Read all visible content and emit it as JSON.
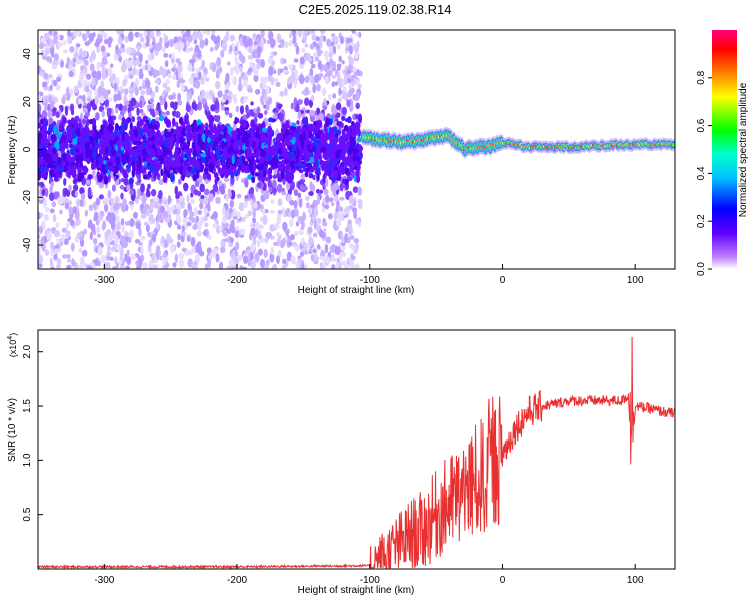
{
  "title": "C2E5.2025.119.02.38.R14",
  "colorbar": {
    "label": "Normalized spectral amplitude",
    "ticks": [
      "0.0",
      "0.2",
      "0.4",
      "0.6",
      "0.8"
    ],
    "range": [
      0,
      1
    ],
    "colormap": [
      "#ffffff",
      "#c080ff",
      "#6000ff",
      "#0000ff",
      "#00bfff",
      "#00ffcc",
      "#00ff00",
      "#ffff00",
      "#ff8000",
      "#ff0000",
      "#ff0080"
    ]
  },
  "chart_data": [
    {
      "type": "heatmap",
      "xlabel": "Height of straight line (km)",
      "ylabel": "Frequency (Hz)",
      "xlim": [
        -350,
        130
      ],
      "ylim": [
        -50,
        50
      ],
      "xticks": [
        -300,
        -200,
        -100,
        0,
        100
      ],
      "yticks": [
        -40,
        -20,
        0,
        20,
        40
      ],
      "xtick_labels": [
        "-300",
        "-200",
        "-100",
        "0",
        "100"
      ],
      "ytick_labels": [
        "-40",
        "-20",
        "0",
        "20",
        "40"
      ],
      "ridge_center": [
        {
          "x": -105,
          "y": 5
        },
        {
          "x": -90,
          "y": 4
        },
        {
          "x": -75,
          "y": 3
        },
        {
          "x": -60,
          "y": 4
        },
        {
          "x": -50,
          "y": 5
        },
        {
          "x": -42,
          "y": 6
        },
        {
          "x": -35,
          "y": 3
        },
        {
          "x": -28,
          "y": 0
        },
        {
          "x": -20,
          "y": 1
        },
        {
          "x": -10,
          "y": 1
        },
        {
          "x": 0,
          "y": 3
        },
        {
          "x": 20,
          "y": 1
        },
        {
          "x": 50,
          "y": 1
        },
        {
          "x": 90,
          "y": 2
        },
        {
          "x": 130,
          "y": 2
        }
      ],
      "noise_region": {
        "x_from": -350,
        "x_to": -107,
        "core_y": [
          -10,
          10
        ]
      },
      "grid": false
    },
    {
      "type": "line",
      "xlabel": "Height of straight line (km)",
      "ylabel": "SNR (10 * v/v)",
      "y_multiplier": "(x10",
      "y_multiplier_exp": "4",
      "y_multiplier_close": ")",
      "xlim": [
        -350,
        130
      ],
      "ylim": [
        0,
        2.2
      ],
      "xticks": [
        -300,
        -200,
        -100,
        0,
        100
      ],
      "yticks": [
        0.5,
        1.0,
        1.5,
        2.0
      ],
      "xtick_labels": [
        "-300",
        "-200",
        "-100",
        "0",
        "100"
      ],
      "ytick_labels": [
        "0.5",
        "1.0",
        "1.5",
        "2.0"
      ],
      "color": "#e83030",
      "series": [
        {
          "x": [
            -350,
            -300,
            -200,
            -100,
            -90,
            -80,
            -70,
            -60,
            -50,
            -40,
            -30,
            -20,
            -10,
            0,
            10,
            20,
            30,
            40,
            50,
            60,
            70,
            80,
            90,
            95,
            97,
            100,
            110,
            120,
            130
          ],
          "y": [
            0.02,
            0.02,
            0.02,
            0.03,
            0.1,
            0.2,
            0.3,
            0.35,
            0.5,
            0.6,
            0.7,
            0.8,
            0.9,
            1.05,
            1.3,
            1.45,
            1.5,
            1.52,
            1.55,
            1.55,
            1.55,
            1.55,
            1.55,
            1.6,
            1.0,
            1.5,
            1.48,
            1.45,
            1.43
          ]
        }
      ],
      "grid": false
    }
  ]
}
